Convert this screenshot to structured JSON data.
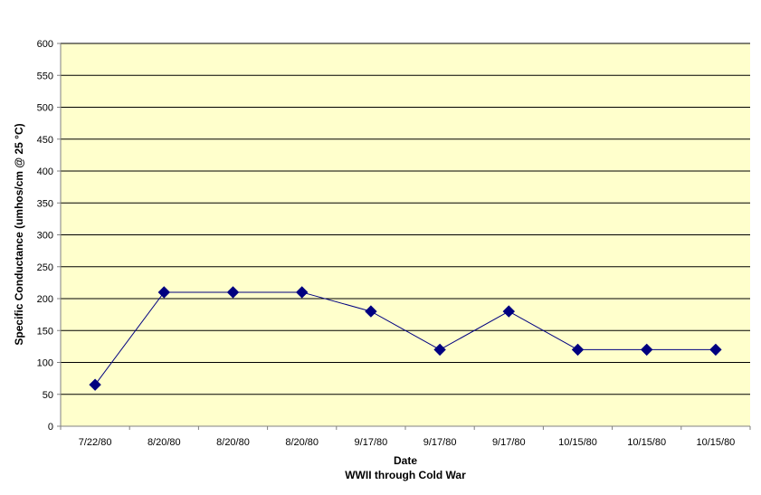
{
  "chart_data": {
    "type": "line",
    "categories": [
      "7/22/80",
      "8/20/80",
      "8/20/80",
      "8/20/80",
      "9/17/80",
      "9/17/80",
      "9/17/80",
      "10/15/80",
      "10/15/80",
      "10/15/80"
    ],
    "series": [
      {
        "values": [
          65,
          210,
          210,
          210,
          180,
          120,
          180,
          120,
          120,
          120
        ]
      }
    ],
    "xlabel": "Date",
    "xsubtitle": "WWII through Cold War",
    "ylabel": "Specific Conductance (umhos/cm @ 25 °C)",
    "ylim": [
      0,
      600
    ],
    "yticks": [
      0,
      50,
      100,
      150,
      200,
      250,
      300,
      350,
      400,
      450,
      500,
      550,
      600
    ],
    "grid": true,
    "marker": "diamond",
    "colors": {
      "plot_background": "#FFFFCC",
      "series": "#000080",
      "gridline": "#000000"
    }
  }
}
